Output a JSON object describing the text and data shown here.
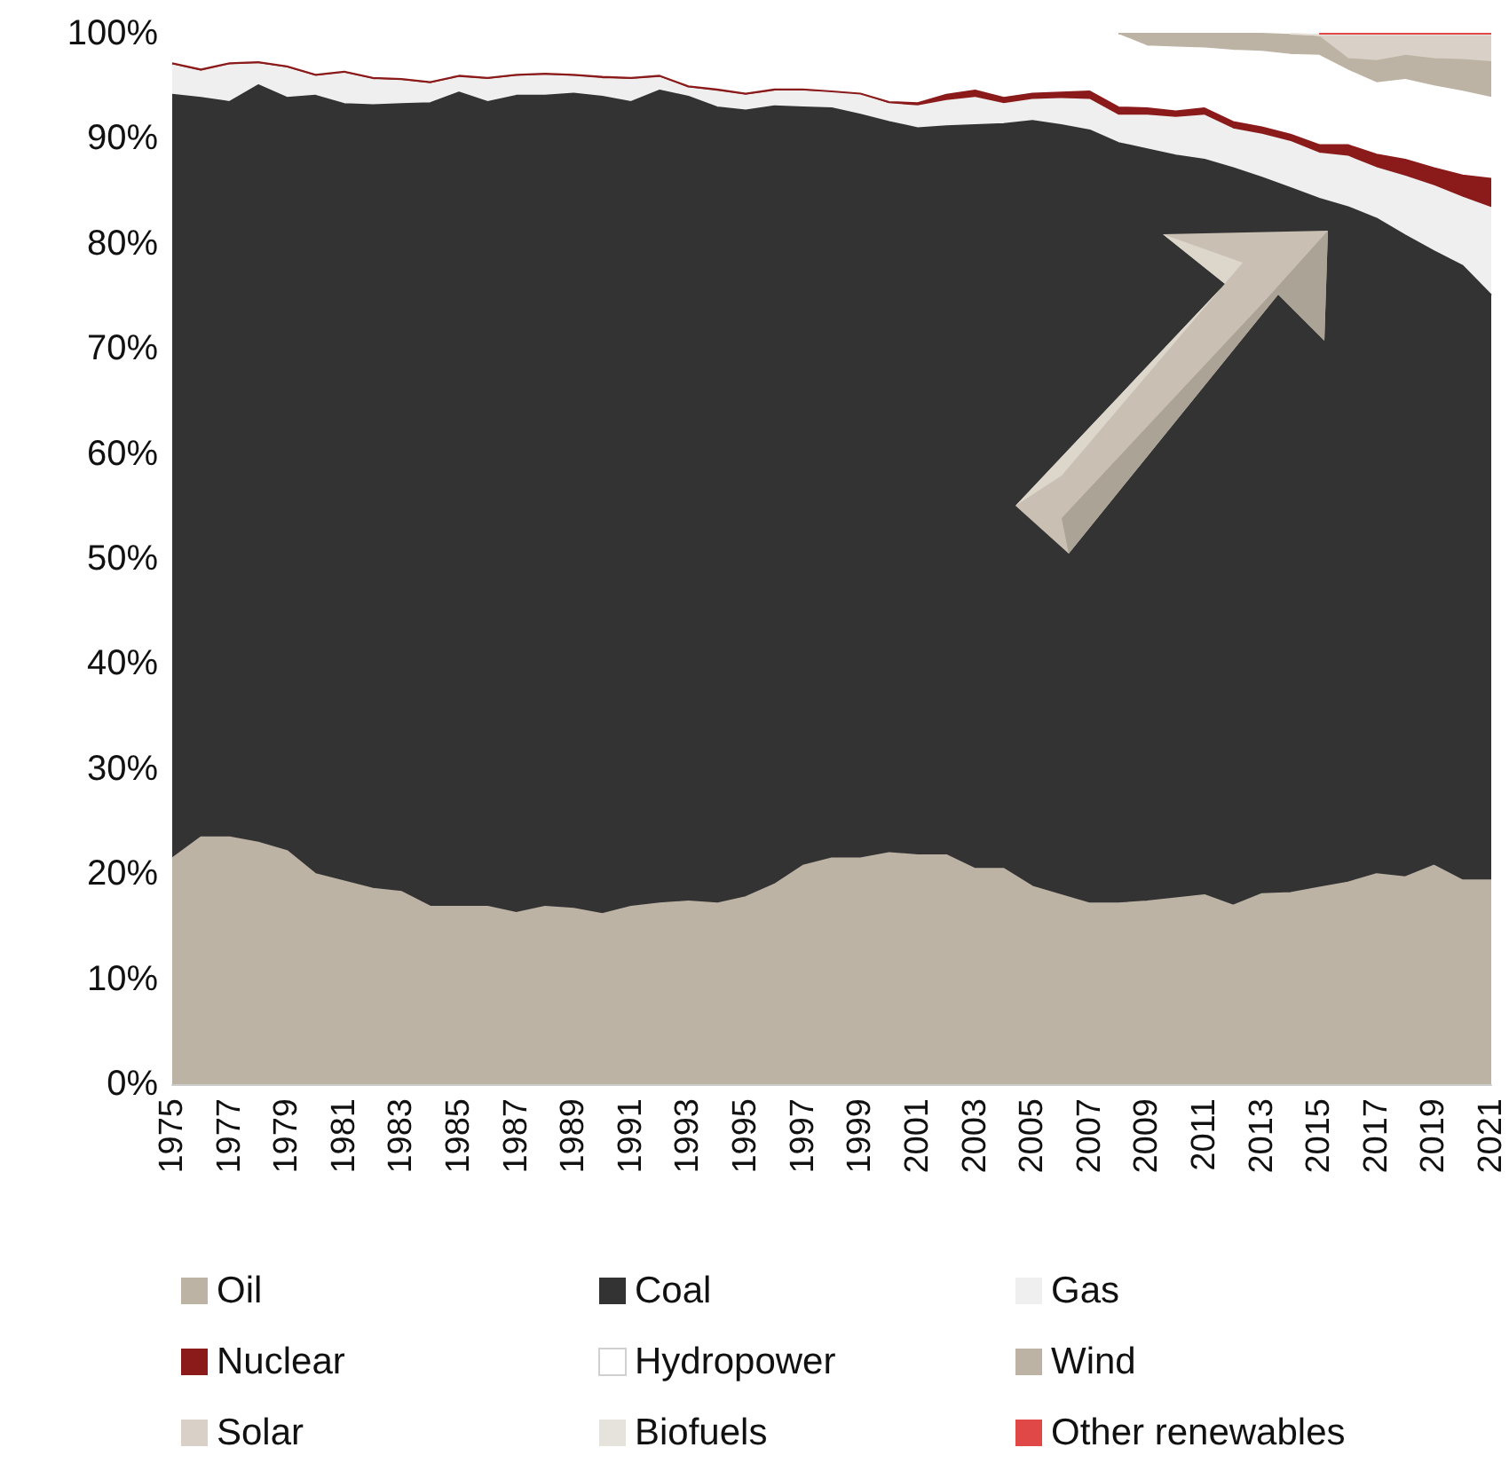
{
  "chart_data": {
    "type": "area",
    "stacked": true,
    "legend": "bottom",
    "grid": false,
    "categories": [
      "1975",
      null,
      "1977",
      null,
      "1979",
      null,
      "1981",
      null,
      "1983",
      null,
      "1985",
      null,
      "1987",
      null,
      "1989",
      null,
      "1991",
      null,
      "1993",
      null,
      "1995",
      null,
      "1997",
      null,
      "1999",
      null,
      "2001",
      null,
      "2003",
      null,
      "2005",
      null,
      "2007",
      null,
      "2009",
      null,
      "2011",
      null,
      "2013",
      null,
      "2015",
      null,
      "2017",
      null,
      "2019",
      null,
      "2021"
    ],
    "ylim": [
      0,
      100
    ],
    "yticks": [
      {
        "value": 0,
        "label": "0%"
      },
      {
        "value": 10,
        "label": "10%"
      },
      {
        "value": 20,
        "label": "20%"
      },
      {
        "value": 30,
        "label": "30%"
      },
      {
        "value": 40,
        "label": "40%"
      },
      {
        "value": 50,
        "label": "50%"
      },
      {
        "value": 60,
        "label": "60%"
      },
      {
        "value": 70,
        "label": "70%"
      },
      {
        "value": 80,
        "label": "80%"
      },
      {
        "value": 90,
        "label": "90%"
      },
      {
        "value": 100,
        "label": "100%"
      }
    ],
    "series": [
      {
        "name": "Oil",
        "color": "#bdb3a5",
        "values": [
          21.5,
          23.5,
          23.5,
          23.0,
          22.2,
          20.0,
          19.3,
          18.6,
          18.3,
          16.9,
          16.9,
          16.9,
          16.3,
          16.9,
          16.7,
          16.2,
          16.9,
          17.2,
          17.4,
          17.2,
          17.8,
          19.0,
          20.8,
          21.5,
          21.5,
          22.0,
          21.8,
          21.8,
          20.5,
          20.5,
          18.8,
          18.0,
          17.2,
          17.2,
          17.4,
          17.7,
          18.0,
          17.0,
          18.1,
          18.2,
          18.7,
          19.2,
          20.0,
          19.7,
          20.8,
          19.4,
          19.4
        ]
      },
      {
        "name": "Coal",
        "color": "#333333",
        "values": [
          72.7,
          70.4,
          70.0,
          72.1,
          71.7,
          74.1,
          74.0,
          74.6,
          75.0,
          76.5,
          77.5,
          76.6,
          77.8,
          77.2,
          77.6,
          77.8,
          76.6,
          77.4,
          76.6,
          75.8,
          74.9,
          74.1,
          72.2,
          71.4,
          70.8,
          69.6,
          69.2,
          69.4,
          70.8,
          70.9,
          72.9,
          73.3,
          73.6,
          72.4,
          71.6,
          70.7,
          70.0,
          70.2,
          68.2,
          67.1,
          65.6,
          64.3,
          62.4,
          61.1,
          58.5,
          58.5,
          55.7
        ]
      },
      {
        "name": "Gas",
        "color": "#efefef",
        "values": [
          2.8,
          2.5,
          3.5,
          2.0,
          2.8,
          1.8,
          2.9,
          2.4,
          2.2,
          1.8,
          1.4,
          2.1,
          1.8,
          1.9,
          1.6,
          1.7,
          2.1,
          1.2,
          0.8,
          1.5,
          1.4,
          1.4,
          1.5,
          1.5,
          1.9,
          1.7,
          2.1,
          2.4,
          2.6,
          1.9,
          2.0,
          2.5,
          2.9,
          2.6,
          3.2,
          3.6,
          4.2,
          3.7,
          4.1,
          4.4,
          4.3,
          4.8,
          4.8,
          5.6,
          6.2,
          6.5,
          8.3
        ]
      },
      {
        "name": "Nuclear",
        "color": "#8b1a1a",
        "values": [
          0.2,
          0.2,
          0.2,
          0.2,
          0.2,
          0.2,
          0.2,
          0.2,
          0.2,
          0.2,
          0.2,
          0.2,
          0.2,
          0.2,
          0.2,
          0.2,
          0.2,
          0.2,
          0.2,
          0.2,
          0.2,
          0.2,
          0.2,
          0.1,
          0.1,
          0.2,
          0.3,
          0.6,
          0.7,
          0.6,
          0.6,
          0.6,
          0.8,
          0.8,
          0.7,
          0.6,
          0.7,
          0.7,
          0.7,
          0.7,
          0.8,
          1.1,
          1.3,
          1.6,
          1.7,
          2.1,
          2.8
        ]
      },
      {
        "name": "Hydropower",
        "color": "#ffffff",
        "values": [
          2.8,
          3.4,
          2.8,
          2.7,
          3.1,
          3.9,
          3.6,
          4.2,
          4.3,
          4.6,
          4.0,
          4.2,
          3.9,
          3.8,
          3.9,
          4.1,
          4.2,
          4.0,
          5.0,
          5.3,
          5.7,
          5.3,
          5.3,
          5.5,
          5.7,
          6.5,
          6.6,
          5.8,
          5.4,
          6.1,
          5.7,
          5.6,
          5.5,
          6.9,
          5.9,
          6.1,
          5.7,
          6.8,
          7.2,
          7.6,
          8.5,
          7.1,
          6.8,
          7.6,
          7.8,
          8.0,
          7.7
        ]
      },
      {
        "name": "Wind",
        "color": "#bdb3a5",
        "values": [
          null,
          null,
          null,
          null,
          null,
          null,
          null,
          null,
          null,
          null,
          null,
          null,
          null,
          null,
          null,
          null,
          null,
          null,
          null,
          null,
          null,
          null,
          null,
          null,
          null,
          null,
          null,
          null,
          null,
          null,
          null,
          null,
          null,
          0.1,
          1.2,
          1.3,
          1.4,
          1.6,
          1.7,
          1.9,
          1.8,
          1.1,
          2.1,
          2.3,
          2.6,
          3.0,
          3.4
        ]
      },
      {
        "name": "Solar",
        "color": "#d9d1c7",
        "values": [
          null,
          null,
          null,
          null,
          null,
          null,
          null,
          null,
          null,
          null,
          null,
          null,
          null,
          null,
          null,
          null,
          null,
          null,
          null,
          null,
          null,
          null,
          null,
          null,
          null,
          null,
          null,
          null,
          null,
          null,
          null,
          null,
          null,
          null,
          null,
          null,
          null,
          null,
          null,
          null,
          0.1,
          2.2,
          2.4,
          1.9,
          2.2,
          2.3,
          2.5
        ]
      },
      {
        "name": "Biofuels",
        "color": "#e6e2dc",
        "values": [
          null,
          null,
          null,
          null,
          null,
          null,
          null,
          null,
          null,
          null,
          null,
          null,
          null,
          null,
          null,
          null,
          null,
          null,
          null,
          null,
          null,
          null,
          null,
          null,
          null,
          null,
          null,
          null,
          null,
          null,
          null,
          null,
          null,
          null,
          null,
          null,
          null,
          null,
          null,
          0.1,
          0.1,
          0.1,
          0.1,
          0.1,
          0.1,
          0.1,
          0.1
        ]
      },
      {
        "name": "Other renewables",
        "color": "#e04848",
        "values": [
          null,
          null,
          null,
          null,
          null,
          null,
          null,
          null,
          null,
          null,
          null,
          null,
          null,
          null,
          null,
          null,
          null,
          null,
          null,
          null,
          null,
          null,
          null,
          null,
          null,
          null,
          null,
          null,
          null,
          null,
          null,
          null,
          null,
          null,
          null,
          null,
          null,
          null,
          null,
          null,
          0.1,
          0.1,
          0.1,
          0.1,
          0.1,
          0.1,
          0.1
        ]
      }
    ]
  }
}
